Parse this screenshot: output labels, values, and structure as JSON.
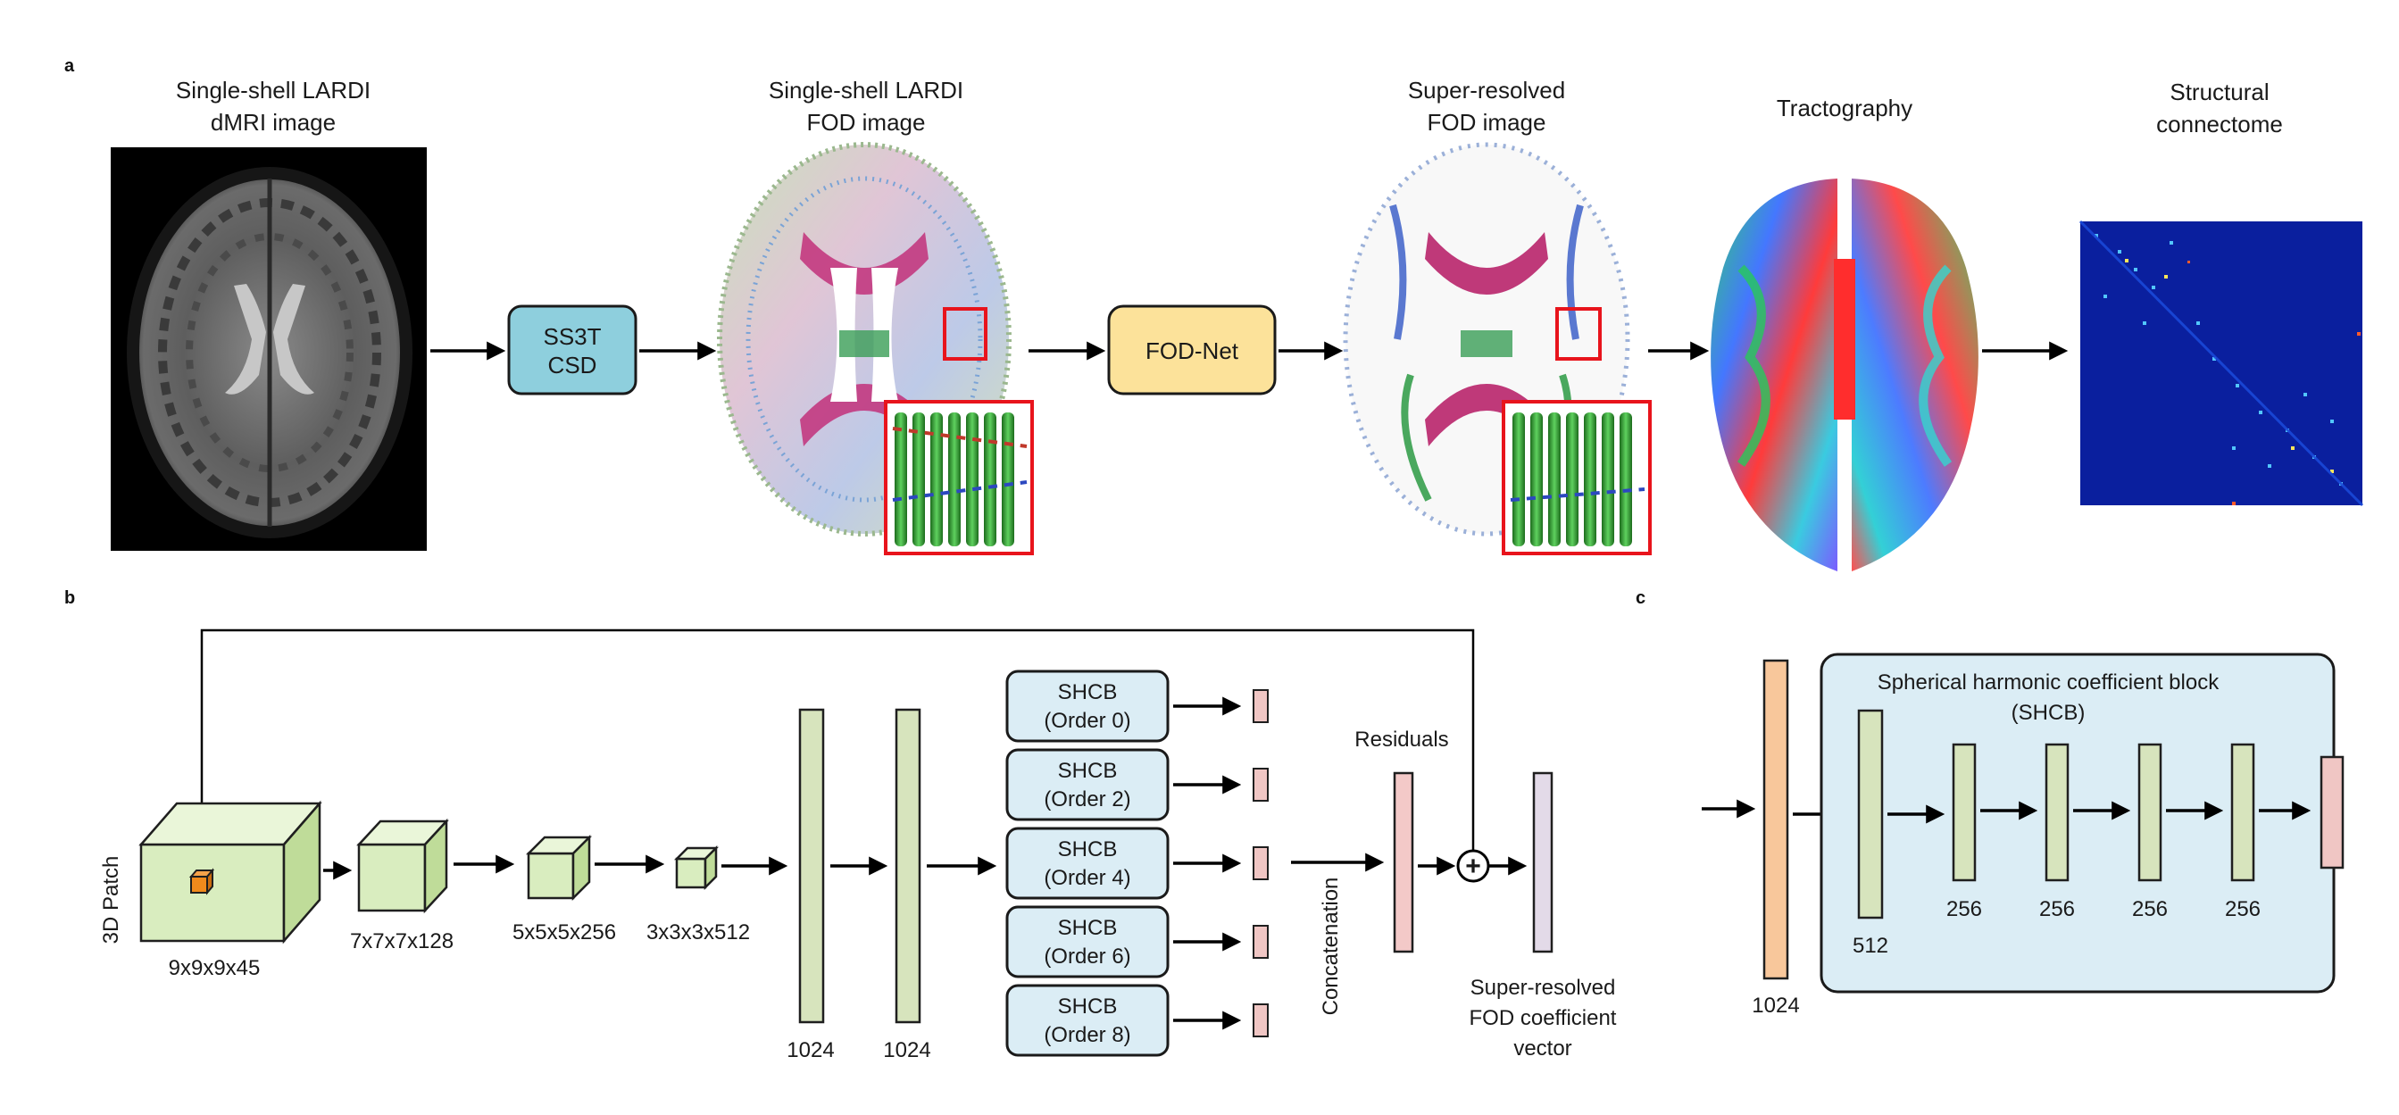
{
  "panels": {
    "a": "a",
    "b": "b",
    "c": "c"
  },
  "panel_a": {
    "dmri_title": [
      "Single-shell LARDI",
      "dMRI image"
    ],
    "fod_title": [
      "Single-shell LARDI",
      "FOD image"
    ],
    "sr_title": [
      "Super-resolved",
      "FOD image"
    ],
    "tract_title": "Tractography",
    "connectome_title": [
      "Structural",
      "connectome"
    ],
    "ss3t_box": [
      "SS3T",
      "CSD"
    ],
    "fodnet_box": "FOD-Net"
  },
  "panel_b": {
    "patch_label": "3D Patch",
    "cube_labels": [
      "9x9x9x45",
      "7x7x7x128",
      "5x5x5x256",
      "3x3x3x512"
    ],
    "fc_labels": [
      "1024",
      "1024"
    ],
    "shcb_boxes": [
      [
        "SHCB",
        "(Order 0)"
      ],
      [
        "SHCB",
        "(Order 2)"
      ],
      [
        "SHCB",
        "(Order 4)"
      ],
      [
        "SHCB",
        "(Order 6)"
      ],
      [
        "SHCB",
        "(Order 8)"
      ]
    ],
    "concat_label": "Concatenation",
    "residuals_label": "Residuals",
    "plus_symbol": "+",
    "output_label": [
      "Super-resolved",
      "FOD coefficient",
      "vector"
    ]
  },
  "panel_c": {
    "block_title": [
      "Spherical harmonic coefficient block",
      "(SHCB)"
    ],
    "input_label": "1024",
    "layer_labels": [
      "512",
      "256",
      "256",
      "256",
      "256"
    ]
  },
  "colors": {
    "ss3t_box": "#8ecfdd",
    "fodnet_box": "#fce29a",
    "shcb_box": "#dbedf5",
    "cube_face": "#d9edbf",
    "cube_top": "#eaf6d9",
    "cube_side": "#bfdc99",
    "fc_bar": "#d7e4bd",
    "output_bar": "#f0c6c4",
    "residual_bar": "#f3c9c8",
    "sr_bar": "#e3dae8",
    "input_bar_c": "#f8c79b",
    "highlight": "#e8141c",
    "connectome_bg": "#0a1f9e"
  }
}
